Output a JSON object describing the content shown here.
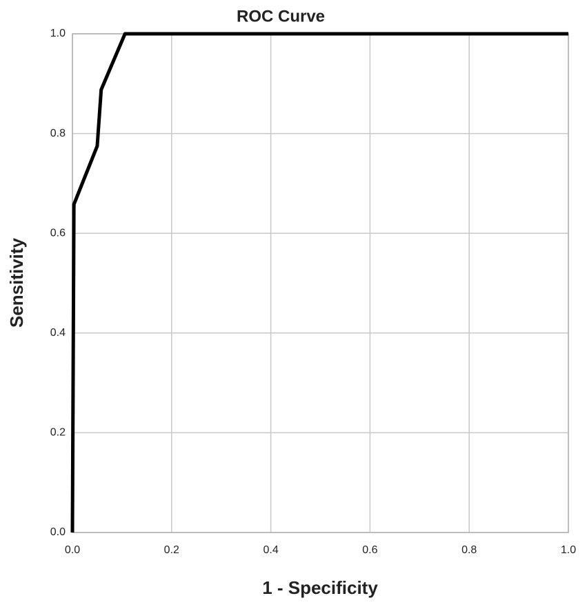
{
  "chart_data": {
    "type": "line",
    "title": "ROC Curve",
    "x_label": "1 - Specificity",
    "y_label": "Sensitivity",
    "x": [
      0,
      0.003,
      0.05,
      0.058,
      0.106,
      1
    ],
    "values": [
      0,
      0.658,
      0.775,
      0.888,
      1,
      1
    ],
    "color": "#000000",
    "xlim": [
      0,
      1
    ],
    "ylim": [
      0,
      1
    ],
    "xticks": [
      {
        "value": 0,
        "label": "0.0"
      },
      0.2,
      0.4,
      0.6,
      0.8,
      {
        "value": 1,
        "label": "1.0"
      }
    ],
    "yticks": [
      {
        "value": 0,
        "label": "0.0"
      },
      0.2,
      0.4,
      0.6,
      0.8,
      {
        "value": 1,
        "label": "1.0"
      }
    ],
    "grid": true
  }
}
